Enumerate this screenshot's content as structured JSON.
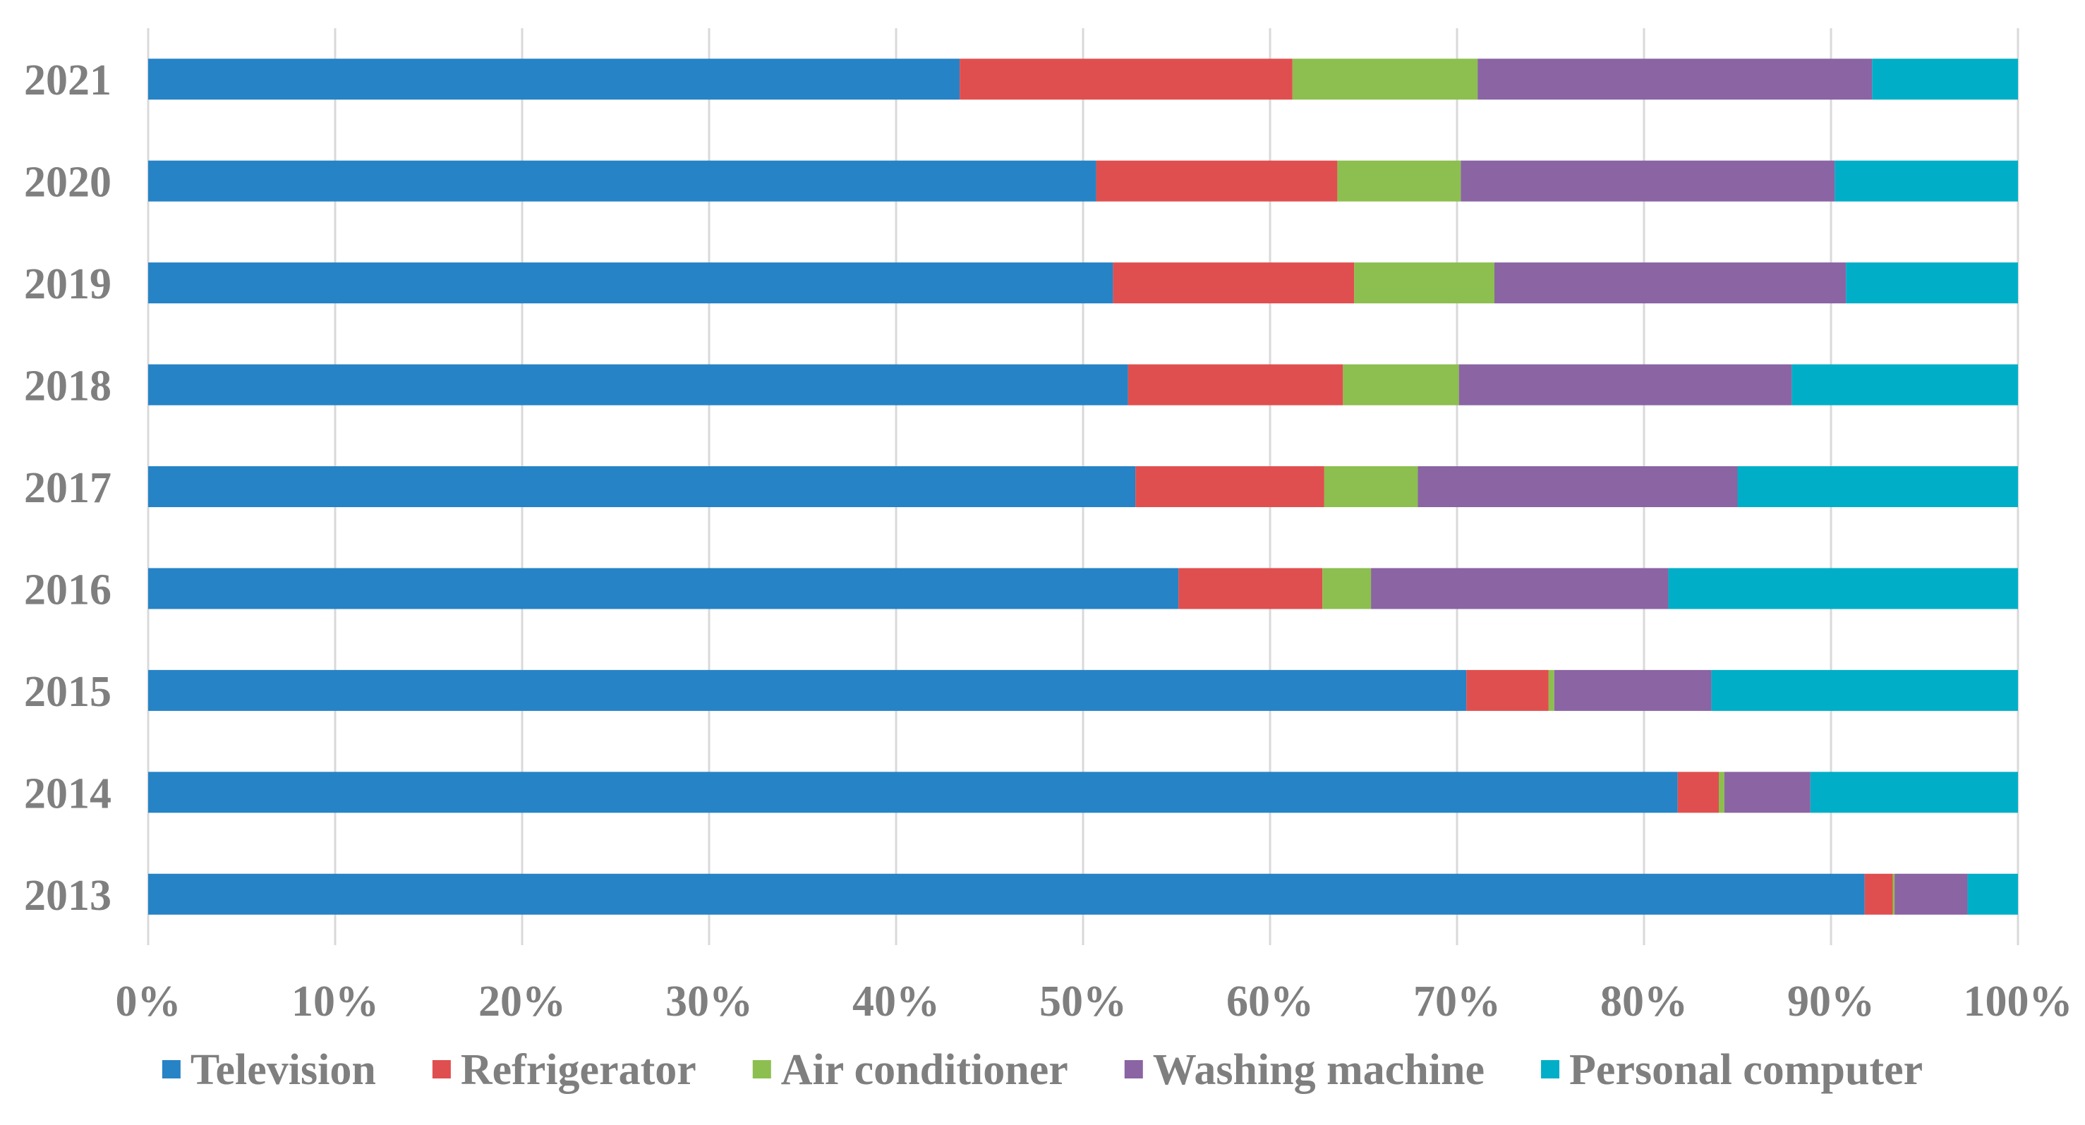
{
  "chart_data": {
    "type": "bar",
    "orientation": "horizontal",
    "stacked": "100%",
    "categories": [
      "2013",
      "2014",
      "2015",
      "2016",
      "2017",
      "2018",
      "2019",
      "2020",
      "2021"
    ],
    "series": [
      {
        "name": "Television",
        "color": "#2683c6",
        "values": [
          91.8,
          81.8,
          70.5,
          55.1,
          52.8,
          52.4,
          51.6,
          50.7,
          43.4
        ]
      },
      {
        "name": "Refrigerator",
        "color": "#e04f4f",
        "values": [
          1.5,
          2.2,
          4.4,
          7.7,
          10.1,
          11.5,
          12.9,
          12.9,
          17.8
        ]
      },
      {
        "name": "Air conditioner",
        "color": "#8cbf4f",
        "values": [
          0.1,
          0.3,
          0.3,
          2.6,
          5.0,
          6.2,
          7.5,
          6.6,
          9.9
        ]
      },
      {
        "name": "Washing machine",
        "color": "#8a64a3",
        "values": [
          3.9,
          4.6,
          8.4,
          15.9,
          17.1,
          17.8,
          18.8,
          20.0,
          21.1
        ]
      },
      {
        "name": "Personal computer",
        "color": "#00aec7",
        "values": [
          2.7,
          11.1,
          16.4,
          18.7,
          15.0,
          12.1,
          9.2,
          9.8,
          7.8
        ]
      }
    ],
    "x_ticks": [
      "0%",
      "10%",
      "20%",
      "30%",
      "40%",
      "50%",
      "60%",
      "70%",
      "80%",
      "90%",
      "100%"
    ],
    "xlim": [
      0,
      100
    ],
    "title": "",
    "xlabel": "",
    "ylabel": "",
    "grid": "vertical",
    "legend": "bottom"
  }
}
